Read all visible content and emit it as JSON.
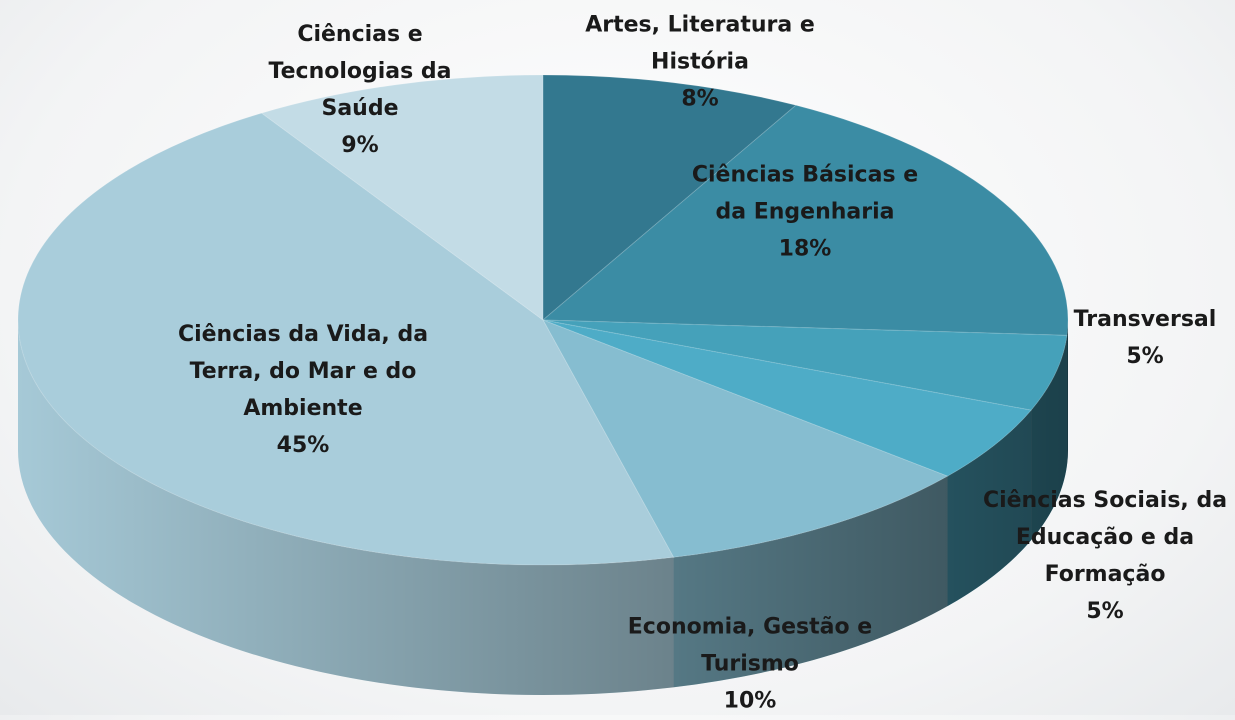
{
  "chart_data": {
    "type": "pie",
    "categories": [
      "Artes, Literatura e História",
      "Ciências Básicas e da Engenharia",
      "Transversal",
      "Ciências Sociais, da Educação e da Formação",
      "Economia, Gestão e Turismo",
      "Ciências da Vida, da Terra, do Mar e do Ambiente",
      "Ciências e Tecnologias da Saúde"
    ],
    "values": [
      8,
      18,
      5,
      5,
      10,
      45,
      9
    ],
    "value_labels": [
      "8%",
      "18%",
      "5%",
      "5%",
      "10%",
      "45%",
      "9%"
    ],
    "colors": [
      "#33788f",
      "#3b8ca4",
      "#45a1ba",
      "#4eacc7",
      "#86bdd0",
      "#a9cddb",
      "#c3dce6"
    ]
  }
}
